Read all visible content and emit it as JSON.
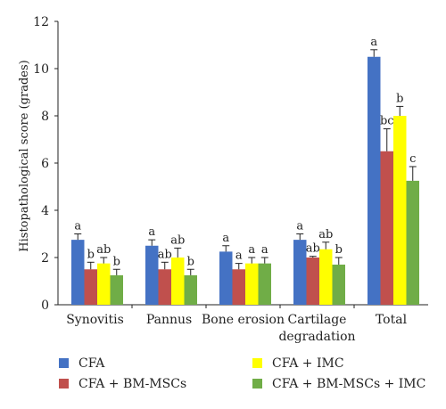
{
  "chart_data": {
    "type": "bar",
    "title": "",
    "xlabel": "",
    "ylabel": "Histopathological score (grades)",
    "ylim": [
      0,
      12
    ],
    "yticks": [
      0,
      2,
      4,
      6,
      8,
      10,
      12
    ],
    "grid": false,
    "legend_position": "bottom",
    "categories": [
      [
        "Synovitis"
      ],
      [
        "Pannus"
      ],
      [
        "Bone erosion"
      ],
      [
        "Cartilage",
        "degradation"
      ],
      [
        "Total"
      ]
    ],
    "series": [
      {
        "name": "CFA",
        "color": "#4472c4",
        "values": [
          2.75,
          2.5,
          2.25,
          2.75,
          10.5
        ],
        "errors": [
          0.25,
          0.25,
          0.25,
          0.25,
          0.3
        ],
        "labels": [
          "a",
          "a",
          "a",
          "a",
          "a"
        ]
      },
      {
        "name": "CFA + BM-MSCs",
        "color": "#c0504d",
        "values": [
          1.5,
          1.5,
          1.5,
          2.0,
          6.5
        ],
        "errors": [
          0.3,
          0.3,
          0.25,
          0.05,
          0.95
        ],
        "labels": [
          "b",
          "ab",
          "a",
          "ab",
          "bc"
        ]
      },
      {
        "name": "CFA + IMC",
        "color": "#ffff00",
        "values": [
          1.75,
          2.0,
          1.75,
          2.35,
          8.0
        ],
        "errors": [
          0.25,
          0.4,
          0.25,
          0.3,
          0.4
        ],
        "labels": [
          "ab",
          "ab",
          "a",
          "ab",
          "b"
        ]
      },
      {
        "name": "CFA + BM-MSCs + IMC",
        "color": "#70ad47",
        "values": [
          1.25,
          1.25,
          1.75,
          1.7,
          5.25
        ],
        "errors": [
          0.25,
          0.25,
          0.25,
          0.3,
          0.6
        ],
        "labels": [
          "b",
          "b",
          "a",
          "b",
          "c"
        ]
      }
    ],
    "legend": [
      {
        "label": "CFA",
        "color": "#4472c4"
      },
      {
        "label": "CFA + IMC",
        "color": "#ffff00"
      },
      {
        "label": "CFA + BM-MSCs",
        "color": "#c0504d"
      },
      {
        "label": "CFA + BM-MSCs + IMC",
        "color": "#70ad47"
      }
    ]
  }
}
